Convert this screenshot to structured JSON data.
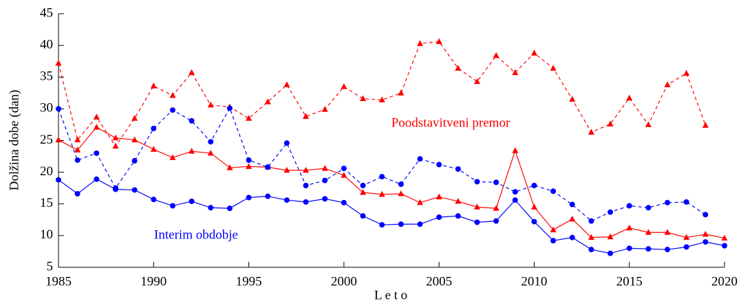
{
  "chart_data": {
    "type": "line",
    "xlabel": "L e t o",
    "ylabel": "Dolžina dobe (dan)",
    "x": [
      1985,
      1986,
      1987,
      1988,
      1989,
      1990,
      1991,
      1992,
      1993,
      1994,
      1995,
      1996,
      1997,
      1998,
      1999,
      2000,
      2001,
      2002,
      2003,
      2004,
      2005,
      2006,
      2007,
      2008,
      2009,
      2010,
      2011,
      2012,
      2013,
      2014,
      2015,
      2016,
      2017,
      2018,
      2019,
      2020
    ],
    "series": [
      {
        "color": "#ff0000",
        "dashed": true,
        "marker": "triangle",
        "values": [
          37.2,
          25.1,
          28.7,
          24.1,
          28.5,
          33.6,
          32.1,
          35.7,
          30.6,
          30.3,
          28.5,
          31.1,
          33.8,
          28.8,
          29.9,
          33.5,
          31.6,
          31.4,
          32.5,
          40.3,
          40.6,
          36.4,
          34.3,
          38.4,
          35.7,
          38.8,
          36.4,
          31.5,
          26.3,
          27.6,
          31.7,
          27.5,
          33.8,
          35.6,
          27.4,
          null
        ]
      },
      {
        "color": "#ff0000",
        "dashed": false,
        "marker": "triangle",
        "values": [
          25.1,
          23.5,
          27.1,
          25.4,
          25.1,
          23.6,
          22.3,
          23.3,
          23.0,
          20.7,
          20.9,
          20.8,
          20.3,
          20.3,
          20.6,
          19.5,
          16.8,
          16.5,
          16.6,
          15.2,
          16.1,
          15.4,
          14.5,
          14.3,
          23.4,
          14.5,
          10.9,
          12.6,
          9.7,
          9.8,
          11.2,
          10.5,
          10.5,
          9.7,
          10.2,
          9.6
        ]
      },
      {
        "color": "#0000ff",
        "dashed": true,
        "marker": "circle",
        "values": [
          30.0,
          21.9,
          23.0,
          17.5,
          21.8,
          26.9,
          29.8,
          28.1,
          24.8,
          30.1,
          21.9,
          20.8,
          24.6,
          17.9,
          18.7,
          20.6,
          17.9,
          19.3,
          18.1,
          22.1,
          21.2,
          20.5,
          18.5,
          18.4,
          16.9,
          17.9,
          17.0,
          14.9,
          12.3,
          13.7,
          14.7,
          14.4,
          15.2,
          15.3,
          13.3,
          null
        ]
      },
      {
        "color": "#0000ff",
        "dashed": false,
        "marker": "circle",
        "values": [
          18.8,
          16.6,
          18.9,
          17.3,
          17.2,
          15.7,
          14.7,
          15.4,
          14.4,
          14.3,
          16.0,
          16.2,
          15.6,
          15.3,
          15.8,
          15.2,
          13.1,
          11.7,
          11.8,
          11.8,
          12.9,
          13.1,
          12.1,
          12.3,
          15.6,
          12.2,
          9.2,
          9.7,
          7.8,
          7.2,
          8.0,
          7.9,
          7.8,
          8.2,
          9.0,
          8.4
        ]
      }
    ],
    "annotations": [
      {
        "text": "Poodstavitveni premor",
        "color": "#ff0000"
      },
      {
        "text": "Interim obdobje",
        "color": "#0000ff"
      }
    ],
    "xlim": [
      1985,
      2020
    ],
    "xticks": [
      1985,
      1990,
      1995,
      2000,
      2005,
      2010,
      2015,
      2020
    ],
    "ylim": [
      5,
      45
    ],
    "yticks": [
      5,
      10,
      15,
      20,
      25,
      30,
      35,
      40,
      45
    ],
    "grid": false
  }
}
